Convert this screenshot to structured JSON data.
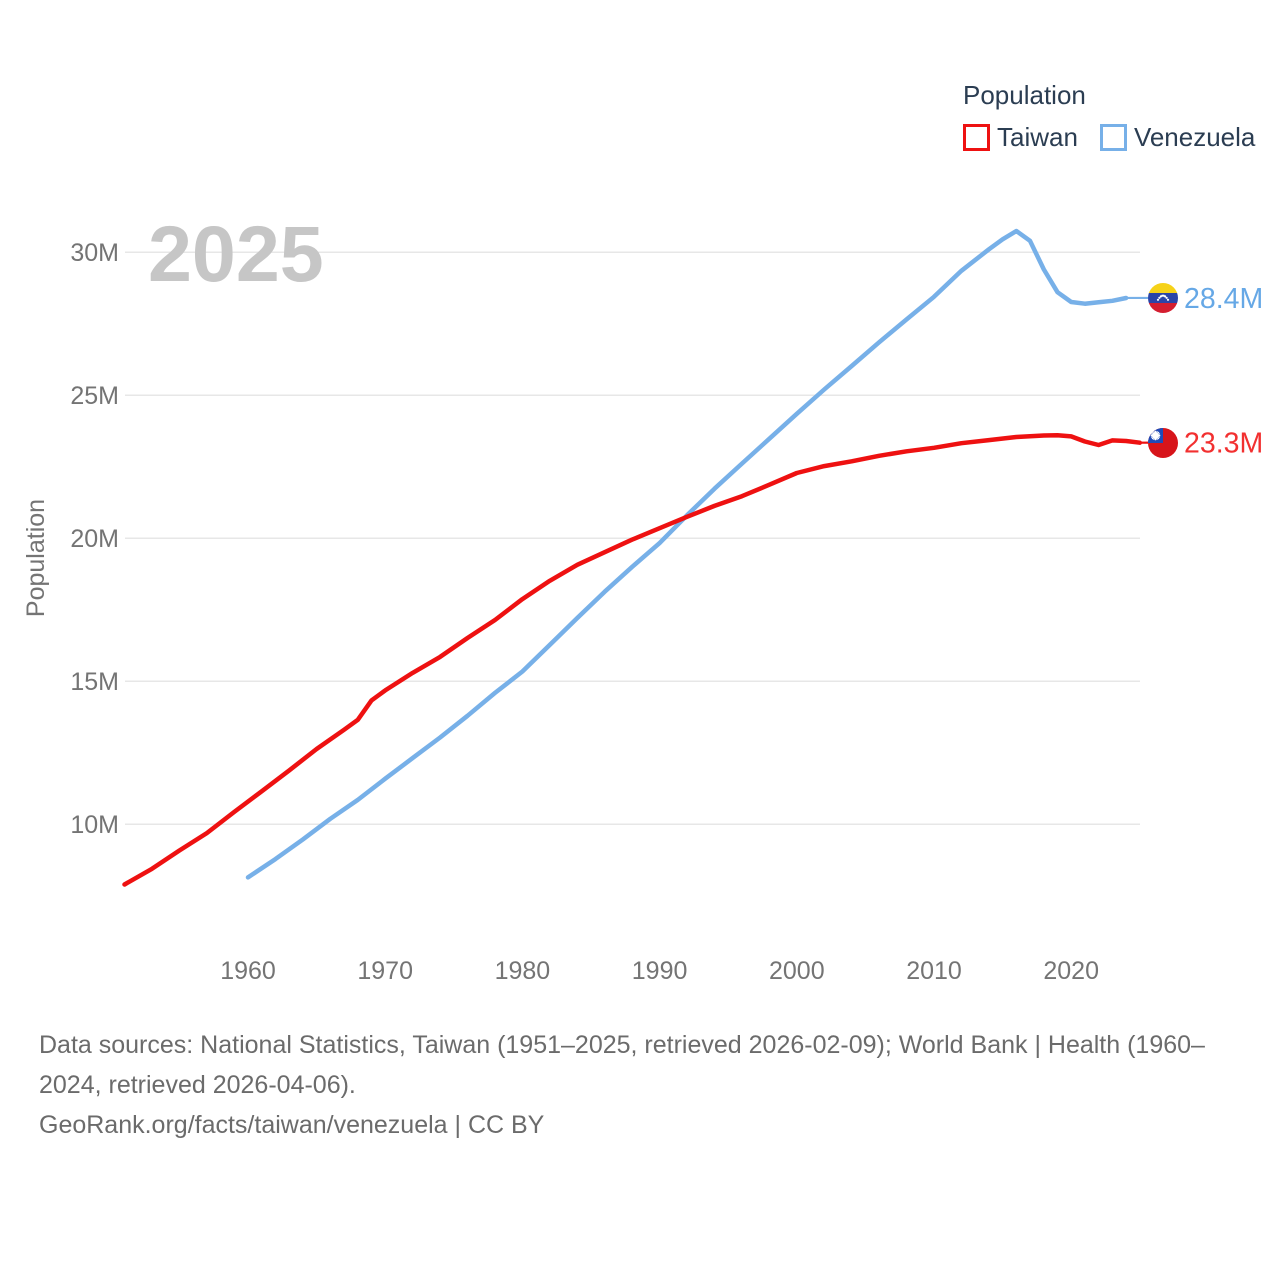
{
  "legend": {
    "title": "Population",
    "items": [
      {
        "label": "Taiwan",
        "color": "#ee1111"
      },
      {
        "label": "Venezuela",
        "color": "#77b0e8"
      }
    ]
  },
  "watermark": "2025",
  "chart_data": {
    "type": "line",
    "title": "Population",
    "xlabel": "",
    "ylabel": "Population",
    "x_range": [
      1951,
      2025
    ],
    "ylim": [
      7.5,
      31.5
    ],
    "grid": true,
    "legend_position": "top-right",
    "x_ticks": [
      1960,
      1970,
      1980,
      1990,
      2000,
      2010,
      2020
    ],
    "y_ticks": [
      {
        "value": 10,
        "label": "10M"
      },
      {
        "value": 15,
        "label": "15M"
      },
      {
        "value": 20,
        "label": "20M"
      },
      {
        "value": 25,
        "label": "25M"
      },
      {
        "value": 30,
        "label": "30M"
      }
    ],
    "series": [
      {
        "name": "Venezuela",
        "color": "#77b0e8",
        "label_color": "#66a8e6",
        "end_label": "28.4M",
        "flag": "venezuela",
        "points": [
          [
            1960,
            8.14
          ],
          [
            1962,
            8.78
          ],
          [
            1964,
            9.47
          ],
          [
            1966,
            10.19
          ],
          [
            1968,
            10.85
          ],
          [
            1970,
            11.59
          ],
          [
            1972,
            12.31
          ],
          [
            1974,
            13.03
          ],
          [
            1976,
            13.79
          ],
          [
            1978,
            14.59
          ],
          [
            1980,
            15.34
          ],
          [
            1982,
            16.27
          ],
          [
            1984,
            17.21
          ],
          [
            1986,
            18.13
          ],
          [
            1988,
            19.0
          ],
          [
            1990,
            19.83
          ],
          [
            1992,
            20.8
          ],
          [
            1994,
            21.73
          ],
          [
            1996,
            22.61
          ],
          [
            1998,
            23.48
          ],
          [
            2000,
            24.35
          ],
          [
            2002,
            25.2
          ],
          [
            2004,
            26.02
          ],
          [
            2006,
            26.85
          ],
          [
            2008,
            27.65
          ],
          [
            2010,
            28.44
          ],
          [
            2012,
            29.35
          ],
          [
            2014,
            30.1
          ],
          [
            2015,
            30.45
          ],
          [
            2016,
            30.74
          ],
          [
            2017,
            30.4
          ],
          [
            2018,
            29.4
          ],
          [
            2019,
            28.6
          ],
          [
            2020,
            28.26
          ],
          [
            2021,
            28.2
          ],
          [
            2022,
            28.25
          ],
          [
            2023,
            28.3
          ],
          [
            2024,
            28.4
          ]
        ]
      },
      {
        "name": "Taiwan",
        "color": "#ee1111",
        "label_color": "#f23030",
        "end_label": "23.3M",
        "flag": "taiwan",
        "points": [
          [
            1951,
            7.89
          ],
          [
            1953,
            8.44
          ],
          [
            1955,
            9.08
          ],
          [
            1957,
            9.69
          ],
          [
            1959,
            10.43
          ],
          [
            1961,
            11.15
          ],
          [
            1963,
            11.88
          ],
          [
            1965,
            12.63
          ],
          [
            1967,
            13.3
          ],
          [
            1968,
            13.65
          ],
          [
            1969,
            14.33
          ],
          [
            1970,
            14.68
          ],
          [
            1972,
            15.29
          ],
          [
            1974,
            15.85
          ],
          [
            1976,
            16.51
          ],
          [
            1978,
            17.14
          ],
          [
            1980,
            17.87
          ],
          [
            1982,
            18.51
          ],
          [
            1984,
            19.07
          ],
          [
            1986,
            19.51
          ],
          [
            1988,
            19.95
          ],
          [
            1990,
            20.35
          ],
          [
            1992,
            20.75
          ],
          [
            1994,
            21.13
          ],
          [
            1996,
            21.47
          ],
          [
            1998,
            21.87
          ],
          [
            2000,
            22.28
          ],
          [
            2002,
            22.52
          ],
          [
            2004,
            22.69
          ],
          [
            2006,
            22.88
          ],
          [
            2008,
            23.04
          ],
          [
            2010,
            23.16
          ],
          [
            2012,
            23.32
          ],
          [
            2014,
            23.43
          ],
          [
            2016,
            23.54
          ],
          [
            2018,
            23.59
          ],
          [
            2019,
            23.6
          ],
          [
            2020,
            23.56
          ],
          [
            2021,
            23.38
          ],
          [
            2022,
            23.26
          ],
          [
            2023,
            23.42
          ],
          [
            2024,
            23.4
          ],
          [
            2025,
            23.34
          ]
        ]
      }
    ]
  },
  "footer": {
    "sources": "Data sources: National Statistics, Taiwan (1951–2025, retrieved 2026-02-09); World Bank | Health (1960–2024, retrieved 2026-04-06).",
    "attribution": "GeoRank.org/facts/taiwan/venezuela | CC BY"
  }
}
